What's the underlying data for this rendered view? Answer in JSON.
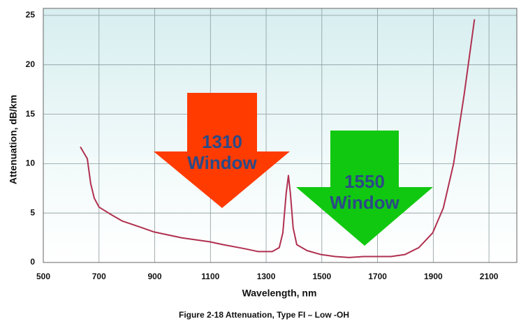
{
  "chart_data": {
    "type": "line",
    "xlabel": "Wavelength, nm",
    "ylabel": "Attenuation, dB/km",
    "caption": "Figure 2-18  Attenuation, Type FI – Low -OH",
    "x": [
      633,
      658,
      670,
      683,
      700,
      746,
      783,
      846,
      896,
      946,
      996,
      1071,
      1096,
      1146,
      1222,
      1272,
      1322,
      1347,
      1360,
      1372,
      1380,
      1387,
      1397,
      1410,
      1447,
      1497,
      1548,
      1598,
      1648,
      1748,
      1798,
      1848,
      1898,
      1936,
      1973,
      2011,
      2048
    ],
    "series": [
      {
        "color": "#b03050",
        "values": [
          11.7,
          10.5,
          8,
          6.5,
          5.6,
          4.8,
          4.2,
          3.6,
          3.1,
          2.8,
          2.5,
          2.2,
          2.1,
          1.8,
          1.4,
          1.1,
          1.1,
          1.5,
          3,
          7,
          8.8,
          7,
          3.5,
          1.8,
          1.2,
          0.8,
          0.6,
          0.5,
          0.6,
          0.6,
          0.8,
          1.5,
          3,
          5.5,
          10,
          17,
          24.6
        ]
      }
    ],
    "xlim": [
      500,
      2200
    ],
    "xticks": [
      500,
      700,
      900,
      1100,
      1300,
      1500,
      1700,
      1900,
      2100
    ],
    "ylim": [
      0,
      25
    ],
    "yticks": [
      0,
      5,
      10,
      15,
      20,
      25
    ],
    "grid": true,
    "annotations": [
      {
        "lines": [
          "1310",
          "Window"
        ],
        "color": "#ff3b00"
      },
      {
        "lines": [
          "1550",
          "Window"
        ],
        "color": "#11c811"
      }
    ]
  }
}
